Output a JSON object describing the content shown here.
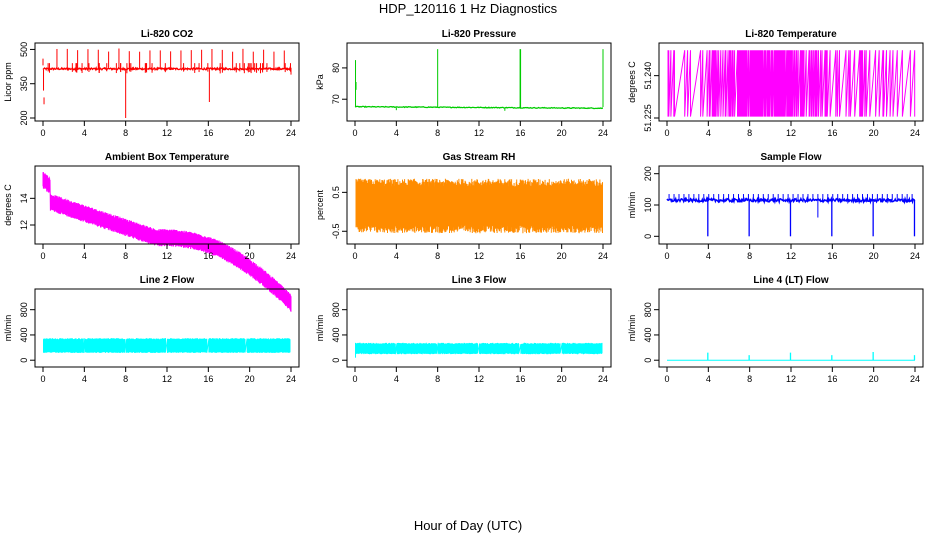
{
  "page_title": "HDP_120116  1 Hz Diagnostics",
  "x_title": "Hour of Day (UTC)",
  "chart_data": [
    {
      "id": "co2",
      "type": "line",
      "title": "Li-820 CO2",
      "ylabel": "Licor ppm",
      "color": "#ff0000",
      "xlim": [
        0,
        24
      ],
      "ylim": [
        200,
        515
      ],
      "yticks": [
        200,
        350,
        500
      ],
      "xticks": [
        0,
        4,
        8,
        12,
        16,
        20,
        24
      ],
      "pattern": "co2"
    },
    {
      "id": "pressure",
      "type": "line",
      "title": "Li-820 Pressure",
      "ylabel": "kPa",
      "color": "#00cc00",
      "xlim": [
        0,
        24
      ],
      "ylim": [
        64,
        87
      ],
      "yticks": [
        70,
        80
      ],
      "xticks": [
        0,
        4,
        8,
        12,
        16,
        20,
        24
      ],
      "pattern": "pressure"
    },
    {
      "id": "licor_temp",
      "type": "line",
      "title": "Li-820 Temperature",
      "ylabel": "degrees C",
      "color": "#ff00ff",
      "xlim": [
        0,
        24
      ],
      "ylim": [
        51.225,
        51.2505
      ],
      "yticks": [
        51.225,
        51.24
      ],
      "ytick_labels": [
        "51.225",
        "51.240"
      ],
      "xticks": [
        0,
        4,
        8,
        12,
        16,
        20,
        24
      ],
      "pattern": "licor_temp"
    },
    {
      "id": "box_temp",
      "type": "line",
      "title": "Ambient Box Temperature",
      "ylabel": "degrees C",
      "color": "#ff00ff",
      "xlim": [
        0,
        24
      ],
      "ylim": [
        10.8,
        16.2
      ],
      "yticks": [
        12,
        14
      ],
      "xticks": [
        0,
        4,
        8,
        12,
        16,
        20,
        24
      ],
      "pattern": "box_temp"
    },
    {
      "id": "rh",
      "type": "scatter",
      "title": "Gas Stream RH",
      "ylabel": "percent",
      "color": "#ff8c00",
      "xlim": [
        0,
        24
      ],
      "ylim": [
        -0.75,
        1.1
      ],
      "yticks": [
        -0.5,
        0.5
      ],
      "xticks": [
        0,
        4,
        8,
        12,
        16,
        20,
        24
      ],
      "pattern": "rh"
    },
    {
      "id": "sample_flow",
      "type": "line",
      "title": "Sample Flow",
      "ylabel": "ml/min",
      "color": "#0000ff",
      "xlim": [
        0,
        24
      ],
      "ylim": [
        -15,
        215
      ],
      "yticks": [
        0,
        100,
        200
      ],
      "xticks": [
        0,
        4,
        8,
        12,
        16,
        20,
        24
      ],
      "pattern": "sample_flow"
    },
    {
      "id": "line2",
      "type": "line",
      "title": "Line 2 Flow",
      "ylabel": "ml/min",
      "color": "#00ffff",
      "xlim": [
        0,
        24
      ],
      "ylim": [
        -60,
        1080
      ],
      "yticks": [
        0,
        400,
        800
      ],
      "xticks": [
        0,
        4,
        8,
        12,
        16,
        20,
        24
      ],
      "pattern": "line2"
    },
    {
      "id": "line3",
      "type": "line",
      "title": "Line 3 Flow",
      "ylabel": "ml/min",
      "color": "#00ffff",
      "xlim": [
        0,
        24
      ],
      "ylim": [
        -60,
        1080
      ],
      "yticks": [
        0,
        400,
        800
      ],
      "xticks": [
        0,
        4,
        8,
        12,
        16,
        20,
        24
      ],
      "pattern": "line3"
    },
    {
      "id": "line4",
      "type": "line",
      "title": "Line 4 (LT) Flow",
      "ylabel": "ml/min",
      "color": "#00ffff",
      "xlim": [
        0,
        24
      ],
      "ylim": [
        -60,
        1080
      ],
      "yticks": [
        0,
        400,
        800
      ],
      "xticks": [
        0,
        4,
        8,
        12,
        16,
        20,
        24
      ],
      "pattern": "line4"
    }
  ]
}
